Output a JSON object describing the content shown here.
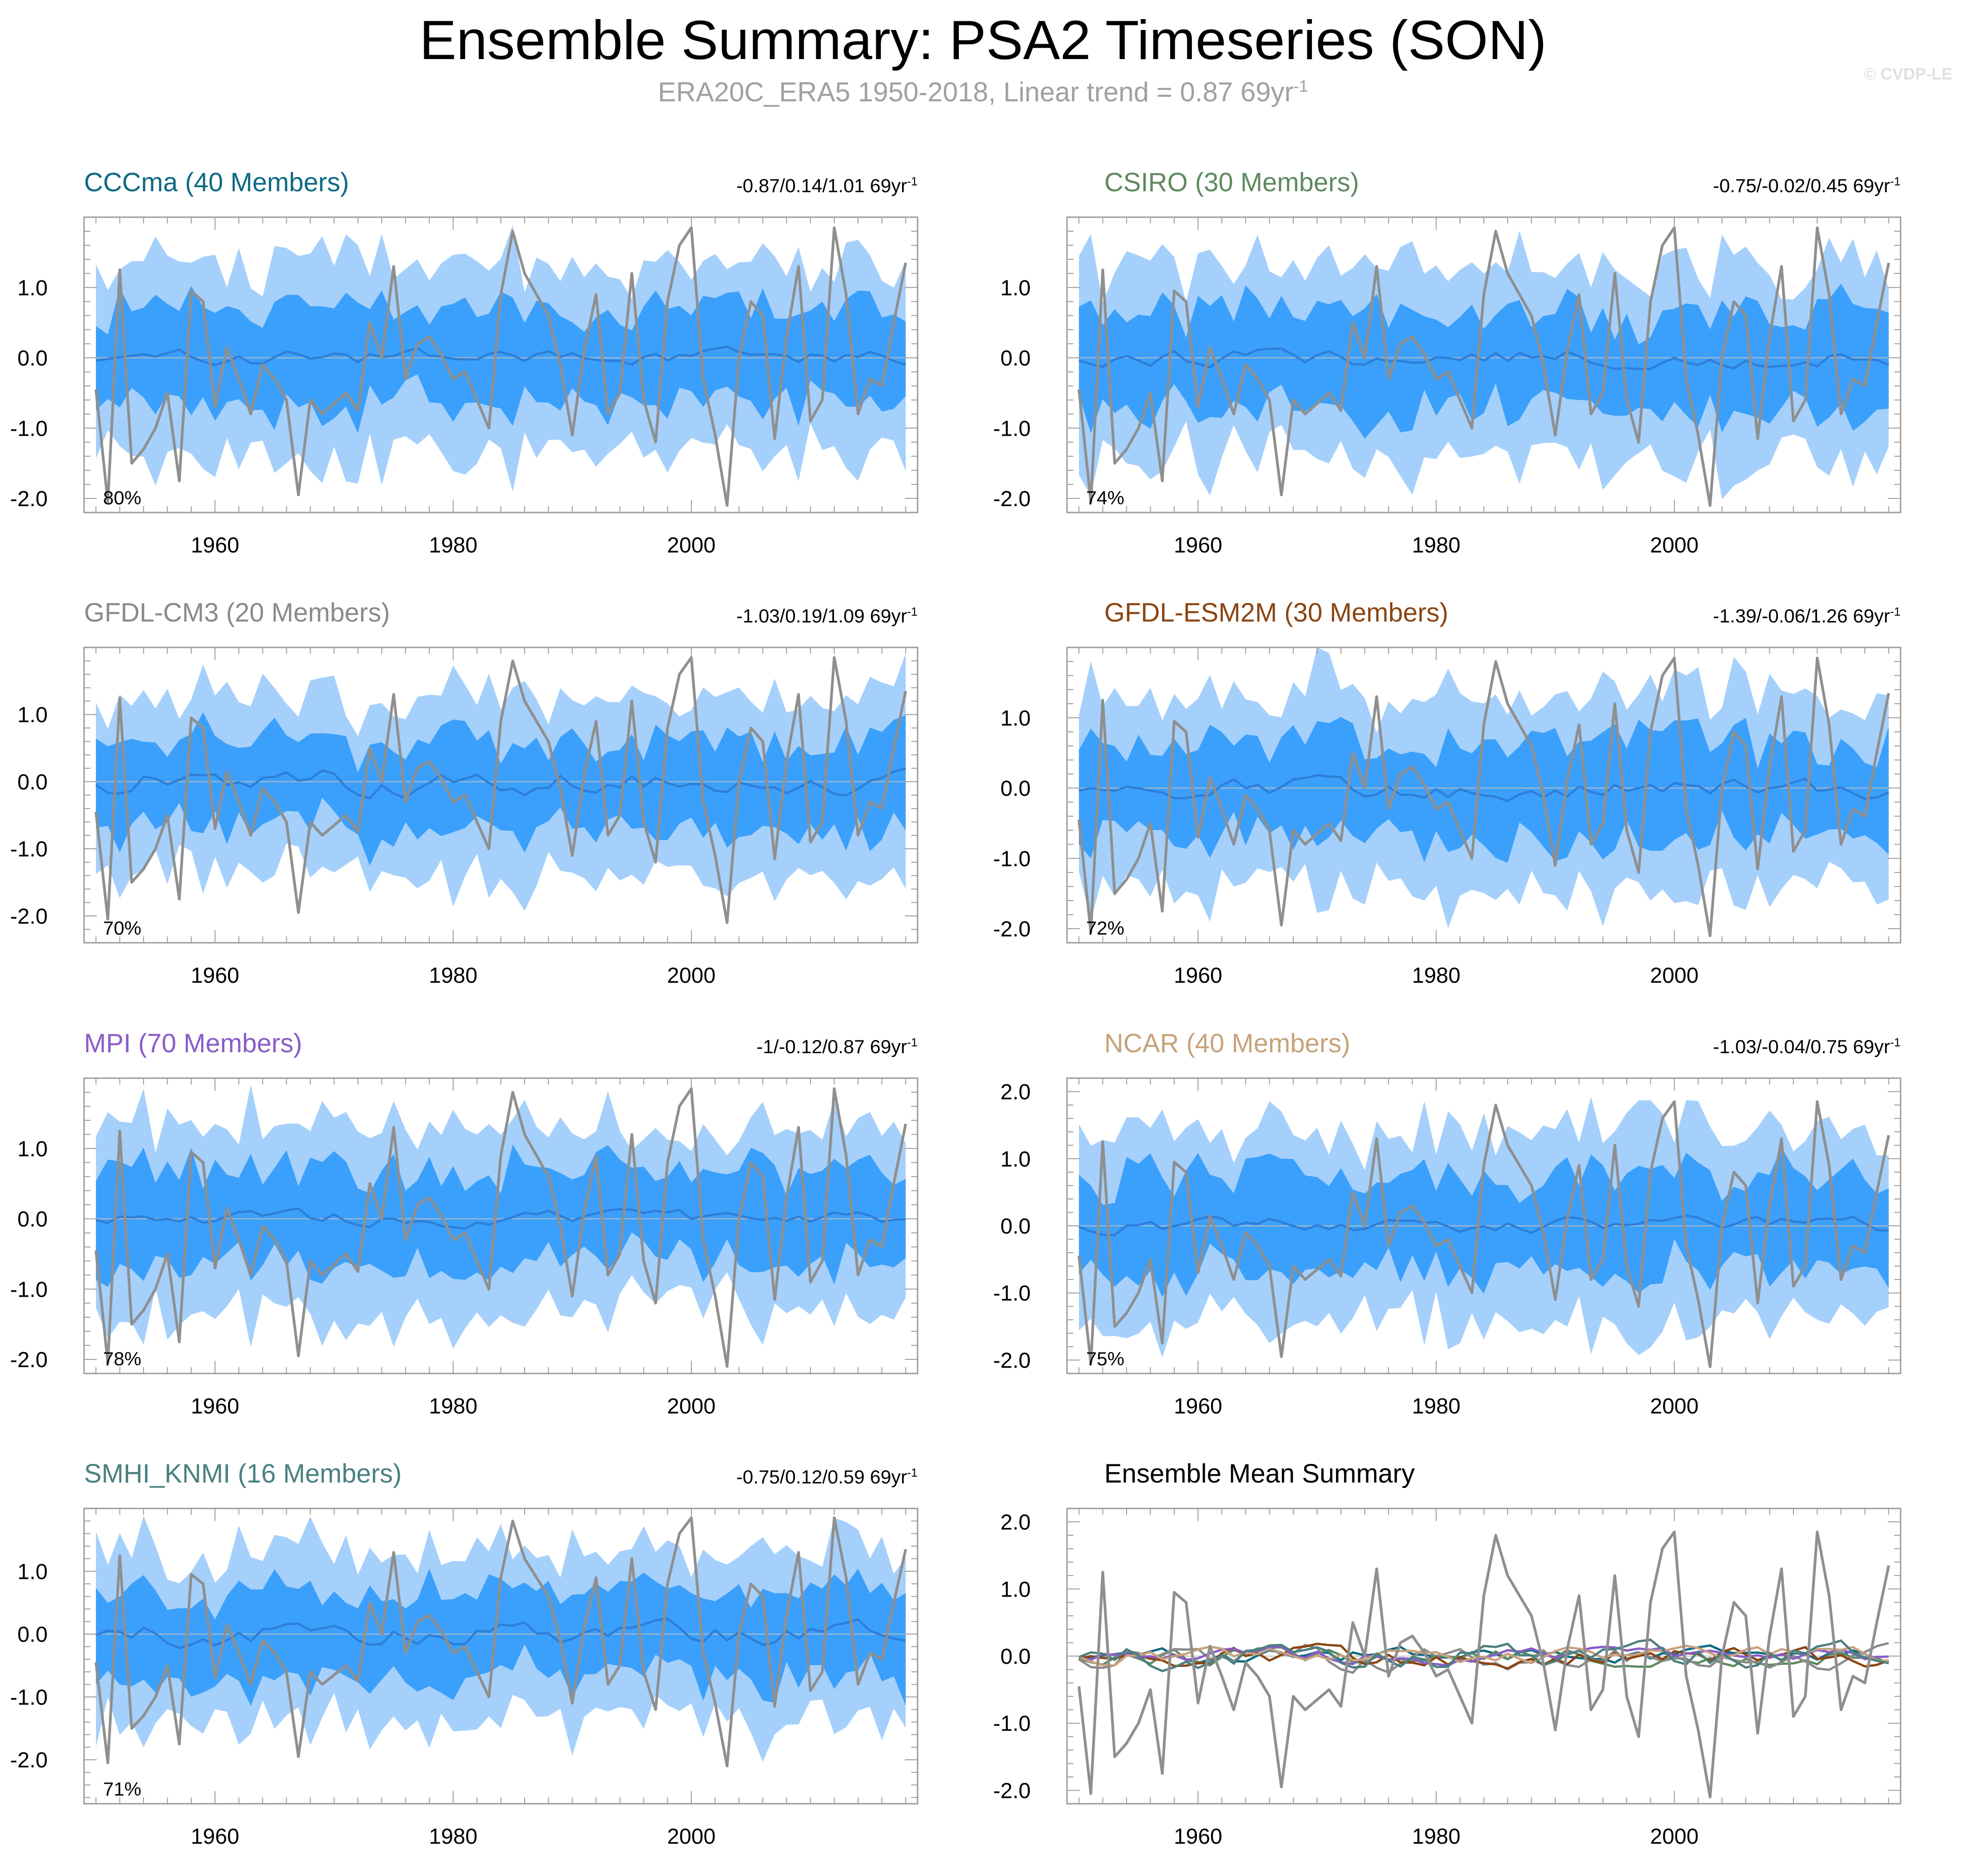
{
  "title": "Ensemble Summary: PSA2 Timeseries (SON)",
  "subtitle": "ERA20C_ERA5 1950-2018, Linear trend = 0.87 69yr",
  "subtitle_sup": "-1",
  "credit": "© CVDP-LE",
  "colors": {
    "outer_band": "#a5d0fb",
    "inner_band": "#3ba0fb",
    "ens_mean": "#2e7fd8",
    "obs": "#8f8f8f",
    "axis": "#9a9a9a",
    "zero_line": "#bcbcbc"
  },
  "chart_data": [
    {
      "type": "line",
      "name": "CCCma (40 Members)",
      "title_color": "#0e6a85",
      "trend": "-0.87/0.14/1.01 69yr",
      "trend_sup": "-1",
      "percent": "80%",
      "x_range": [
        1949,
        2019
      ],
      "ylim": [
        -2.2,
        2.0
      ],
      "yticks": [
        -2.0,
        -1.0,
        0.0,
        1.0
      ],
      "ytick_labels": [
        "-2.0",
        "-1.0",
        "0.0",
        "1.0"
      ],
      "xticks": [
        1960,
        1980,
        2000
      ],
      "xtick_labels": [
        "1960",
        "1980",
        "2000"
      ],
      "mean_scale": 0.09,
      "seed": 11
    },
    {
      "type": "line",
      "name": "CSIRO (30 Members)",
      "title_color": "#5e8a5e",
      "trend": "-0.75/-0.02/0.45 69yr",
      "trend_sup": "-1",
      "percent": "74%",
      "x_range": [
        1949,
        2019
      ],
      "ylim": [
        -2.2,
        2.0
      ],
      "yticks": [
        -2.0,
        -1.0,
        0.0,
        1.0
      ],
      "ytick_labels": [
        "-2.0",
        "-1.0",
        "0.0",
        "1.0"
      ],
      "xticks": [
        1960,
        1980,
        2000
      ],
      "xtick_labels": [
        "1960",
        "1980",
        "2000"
      ],
      "mean_scale": 0.1,
      "seed": 23
    },
    {
      "type": "line",
      "name": "GFDL-CM3 (20 Members)",
      "title_color": "#8a8a8a",
      "trend": "-1.03/0.19/1.09 69yr",
      "trend_sup": "-1",
      "percent": "70%",
      "x_range": [
        1949,
        2019
      ],
      "ylim": [
        -2.4,
        2.0
      ],
      "yticks": [
        -2.0,
        -1.0,
        0.0,
        1.0
      ],
      "ytick_labels": [
        "-2.0",
        "-1.0",
        "0.0",
        "1.0"
      ],
      "xticks": [
        1960,
        1980,
        2000
      ],
      "xtick_labels": [
        "1960",
        "1980",
        "2000"
      ],
      "mean_scale": 0.15,
      "seed": 37
    },
    {
      "type": "line",
      "name": "GFDL-ESM2M (30 Members)",
      "title_color": "#8b4513",
      "trend": "-1.39/-0.06/1.26 69yr",
      "trend_sup": "-1",
      "percent": "72%",
      "x_range": [
        1949,
        2019
      ],
      "ylim": [
        -2.2,
        2.0
      ],
      "yticks": [
        -2.0,
        -1.0,
        0.0,
        1.0
      ],
      "ytick_labels": [
        "-2.0",
        "-1.0",
        "0.0",
        "1.0"
      ],
      "xticks": [
        1960,
        1980,
        2000
      ],
      "xtick_labels": [
        "1960",
        "1980",
        "2000"
      ],
      "mean_scale": 0.12,
      "seed": 41
    },
    {
      "type": "line",
      "name": "MPI (70 Members)",
      "title_color": "#8a5cc8",
      "trend": "-1/-0.12/0.87 69yr",
      "trend_sup": "-1",
      "percent": "78%",
      "x_range": [
        1949,
        2019
      ],
      "ylim": [
        -2.2,
        2.0
      ],
      "yticks": [
        -2.0,
        -1.0,
        0.0,
        1.0
      ],
      "ytick_labels": [
        "-2.0",
        "-1.0",
        "0.0",
        "1.0"
      ],
      "xticks": [
        1960,
        1980,
        2000
      ],
      "xtick_labels": [
        "1960",
        "1980",
        "2000"
      ],
      "mean_scale": 0.08,
      "seed": 53
    },
    {
      "type": "line",
      "name": "NCAR (40 Members)",
      "title_color": "#c8a27a",
      "trend": "-1.03/-0.04/0.75 69yr",
      "trend_sup": "-1",
      "percent": "75%",
      "x_range": [
        1949,
        2019
      ],
      "ylim": [
        -2.2,
        2.2
      ],
      "yticks": [
        -2.0,
        -1.0,
        0.0,
        1.0,
        2.0
      ],
      "ytick_labels": [
        "-2.0",
        "-1.0",
        "0.0",
        "1.0",
        "2.0"
      ],
      "xticks": [
        1960,
        1980,
        2000
      ],
      "xtick_labels": [
        "1960",
        "1980",
        "2000"
      ],
      "mean_scale": 0.09,
      "seed": 67
    },
    {
      "type": "line",
      "name": "SMHI_KNMI (16 Members)",
      "title_color": "#4a8080",
      "trend": "-0.75/0.12/0.59 69yr",
      "trend_sup": "-1",
      "percent": "71%",
      "x_range": [
        1949,
        2019
      ],
      "ylim": [
        -2.7,
        2.0
      ],
      "yticks": [
        -2.0,
        -1.0,
        0.0,
        1.0
      ],
      "ytick_labels": [
        "-2.0",
        "-1.0",
        "0.0",
        "1.0"
      ],
      "xticks": [
        1960,
        1980,
        2000
      ],
      "xtick_labels": [
        "1960",
        "1980",
        "2000"
      ],
      "mean_scale": 0.15,
      "seed": 79
    },
    {
      "type": "line",
      "name": "Ensemble Mean Summary",
      "title_color": "#000000",
      "summary": true,
      "x_range": [
        1949,
        2019
      ],
      "ylim": [
        -2.2,
        2.2
      ],
      "yticks": [
        -2.0,
        -1.0,
        0.0,
        1.0,
        2.0
      ],
      "ytick_labels": [
        "-2.0",
        "-1.0",
        "0.0",
        "1.0",
        "2.0"
      ],
      "xticks": [
        1960,
        1980,
        2000
      ],
      "xtick_labels": [
        "1960",
        "1980",
        "2000"
      ],
      "series": [
        {
          "name": "CCCma",
          "color": "#0e6a85",
          "seed": 11
        },
        {
          "name": "CSIRO",
          "color": "#5e8a5e",
          "seed": 23
        },
        {
          "name": "GFDL-CM3",
          "color": "#8a8a8a",
          "seed": 37
        },
        {
          "name": "GFDL-ESM2M",
          "color": "#8b4513",
          "seed": 41
        },
        {
          "name": "MPI",
          "color": "#8a5cc8",
          "seed": 53
        },
        {
          "name": "NCAR",
          "color": "#c8a27a",
          "seed": 67
        },
        {
          "name": "SMHI_KNMI",
          "color": "#4a8080",
          "seed": 79
        }
      ]
    }
  ],
  "observations": {
    "name": "ERA20C_ERA5",
    "years": [
      1950,
      1951,
      1952,
      1953,
      1954,
      1955,
      1956,
      1957,
      1958,
      1959,
      1960,
      1961,
      1962,
      1963,
      1964,
      1965,
      1966,
      1967,
      1968,
      1969,
      1970,
      1971,
      1972,
      1973,
      1974,
      1975,
      1976,
      1977,
      1978,
      1979,
      1980,
      1981,
      1982,
      1983,
      1984,
      1985,
      1986,
      1987,
      1988,
      1989,
      1990,
      1991,
      1992,
      1993,
      1994,
      1995,
      1996,
      1997,
      1998,
      1999,
      2000,
      2001,
      2002,
      2003,
      2004,
      2005,
      2006,
      2007,
      2008,
      2009,
      2010,
      2011,
      2012,
      2013,
      2014,
      2015,
      2016,
      2017,
      2018
    ],
    "values": [
      -0.45,
      -2.05,
      1.25,
      -1.5,
      -1.3,
      -1.0,
      -0.5,
      -1.75,
      0.95,
      0.8,
      -0.7,
      0.15,
      -0.3,
      -0.8,
      -0.1,
      -0.3,
      -0.6,
      -1.95,
      -0.6,
      -0.8,
      -0.65,
      -0.5,
      -0.75,
      0.5,
      0.0,
      1.3,
      -0.3,
      0.2,
      0.3,
      0.05,
      -0.3,
      -0.2,
      -0.6,
      -1.0,
      0.9,
      1.8,
      1.2,
      0.9,
      0.6,
      -0.1,
      -1.1,
      0.1,
      0.9,
      -0.8,
      -0.5,
      1.2,
      -0.6,
      -1.2,
      0.8,
      1.6,
      1.85,
      -0.3,
      -1.1,
      -2.1,
      0.0,
      0.8,
      0.6,
      -1.15,
      0.3,
      1.3,
      -0.9,
      -0.6,
      1.85,
      0.9,
      -0.8,
      -0.3,
      -0.4,
      0.5,
      1.35
    ]
  }
}
